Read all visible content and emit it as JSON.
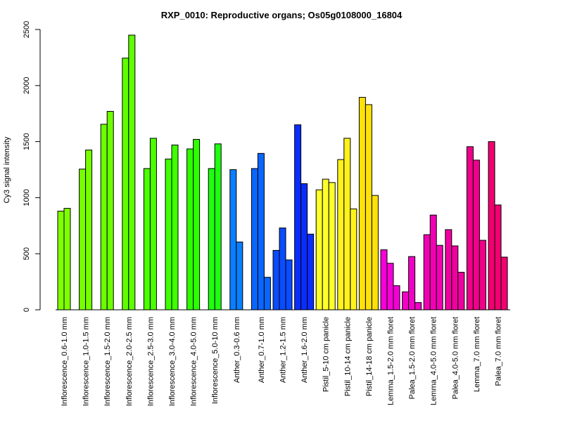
{
  "chart_data": {
    "type": "bar",
    "title": "RXP_0010: Reproductive organs; Os05g0108000_16804",
    "xlabel": "",
    "ylabel": "Cy3 signal intensity",
    "ylim": [
      0,
      2500
    ],
    "yticks": [
      0,
      500,
      1000,
      1500,
      2000,
      2500
    ],
    "grid": false,
    "legend": "none",
    "groups": [
      {
        "label": "Inflorescence_0.6-1.0 mm",
        "color": "#7FFF00",
        "values": [
          880,
          905
        ]
      },
      {
        "label": "Inflorescence_1.0-1.5 mm",
        "color": "#77FF00",
        "values": [
          1255,
          1425
        ]
      },
      {
        "label": "Inflorescence_1.5-2.0 mm",
        "color": "#6CFF00",
        "values": [
          1655,
          1770
        ]
      },
      {
        "label": "Inflorescence_2.0-2.5 mm",
        "color": "#5FFF00",
        "values": [
          2245,
          2450
        ]
      },
      {
        "label": "Inflorescence_2.5-3.0 mm",
        "color": "#4CFF00",
        "values": [
          1260,
          1530
        ]
      },
      {
        "label": "Inflorescence_3.0-4.0 mm",
        "color": "#3FFF00",
        "values": [
          1345,
          1470
        ]
      },
      {
        "label": "Inflorescence_4.0-5.0 mm",
        "color": "#2DFF00",
        "values": [
          1435,
          1520
        ]
      },
      {
        "label": "Inflorescence_5.0-10 mm",
        "color": "#1FFF10",
        "values": [
          1260,
          1480
        ]
      },
      {
        "label": "Anther_0.3-0.6 mm",
        "color": "#0A7FFF",
        "values": [
          1250,
          605
        ]
      },
      {
        "label": "Anther_0.7-1.0 mm",
        "color": "#0A66FF",
        "values": [
          1260,
          1395,
          290
        ]
      },
      {
        "label": "Anther_1.2-1.5 mm",
        "color": "#0A4CFF",
        "values": [
          530,
          730,
          445
        ]
      },
      {
        "label": "Anther_1.6-2.0 mm",
        "color": "#0A2DFF",
        "values": [
          1650,
          1125,
          675
        ]
      },
      {
        "label": "Pistil_5-10 cm panicle",
        "color": "#FFFF2A",
        "values": [
          1070,
          1165,
          1135
        ]
      },
      {
        "label": "Pistil_10-14 cm panicle",
        "color": "#FFF21A",
        "values": [
          1340,
          1530,
          900
        ]
      },
      {
        "label": "Pistil_14-18 cm panicle",
        "color": "#FFE10A",
        "values": [
          1895,
          1830,
          1020
        ]
      },
      {
        "label": "Lemma_1.5-2.0 mm floret",
        "color": "#F500D8",
        "values": [
          535,
          415,
          215
        ]
      },
      {
        "label": "Palea_1.5-2.0 mm floret",
        "color": "#F200C8",
        "values": [
          160,
          475,
          65
        ]
      },
      {
        "label": "Lemma_4.0-5.0 mm floret",
        "color": "#F200B4",
        "values": [
          670,
          845,
          575
        ]
      },
      {
        "label": "Palea_4.0-5.0 mm floret",
        "color": "#F000A0",
        "values": [
          715,
          570,
          335
        ]
      },
      {
        "label": "Lemma_7.0 mm floret",
        "color": "#F0008A",
        "values": [
          1455,
          1335,
          620
        ]
      },
      {
        "label": "Palea_7.0 mm floret",
        "color": "#F00070",
        "values": [
          1500,
          935,
          470
        ]
      }
    ]
  }
}
